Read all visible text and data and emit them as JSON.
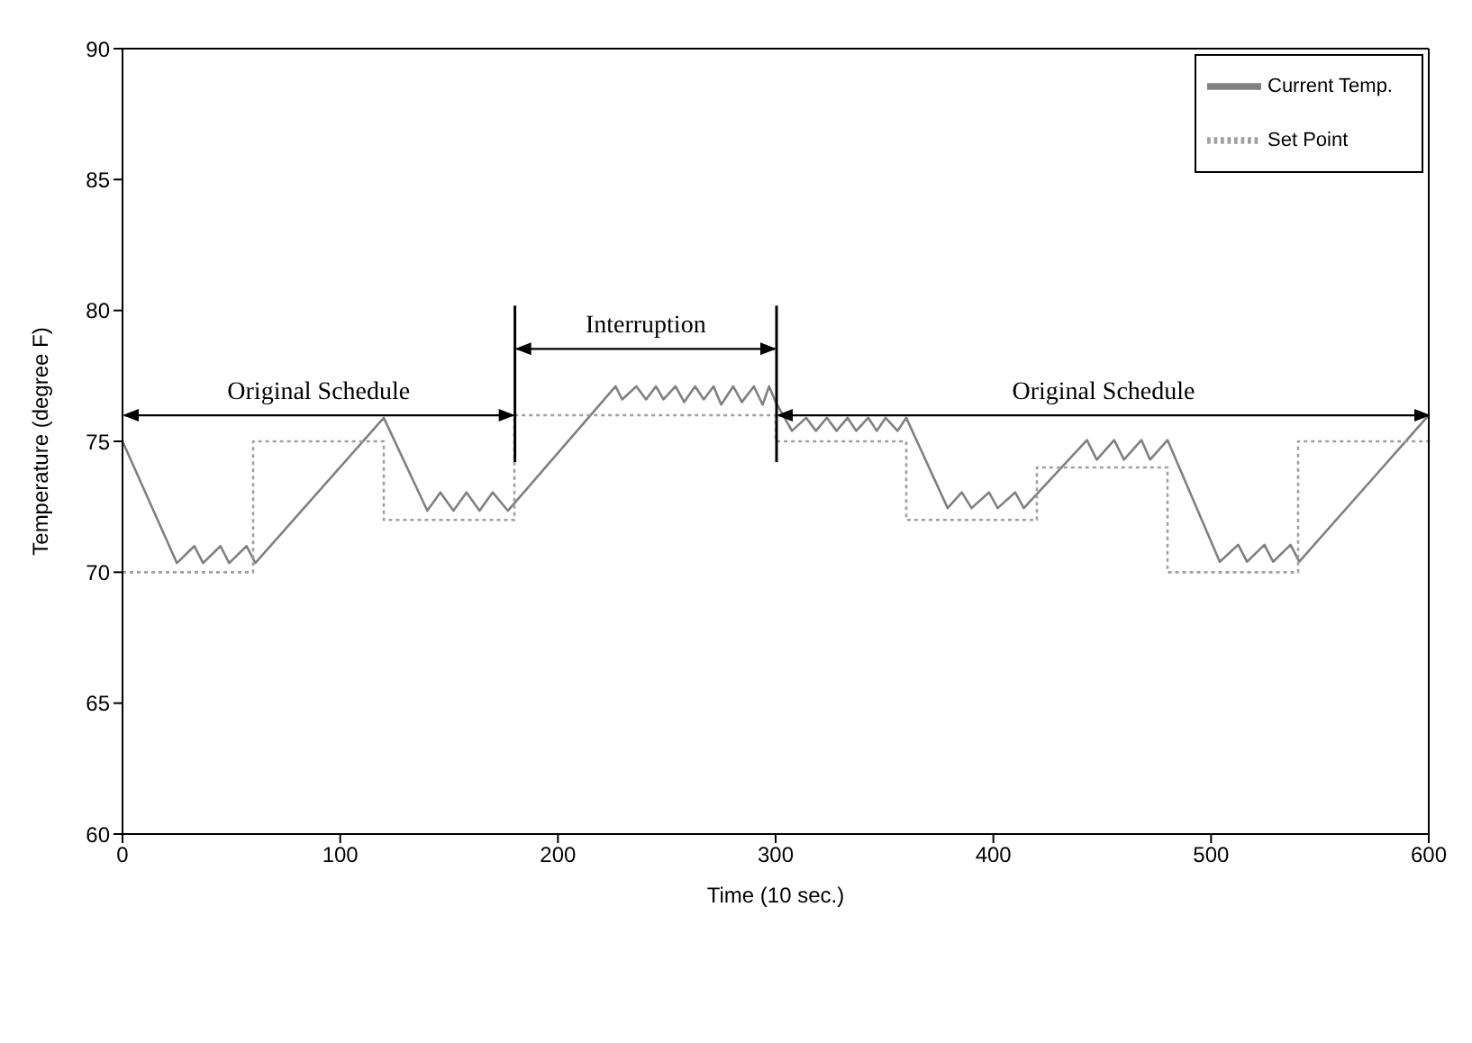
{
  "chart_data": {
    "type": "line",
    "xlabel": "Time (10 sec.)",
    "ylabel": "Temperature (degree F)",
    "xlim": [
      0,
      600
    ],
    "xticks": [
      0,
      100,
      200,
      300,
      400,
      500,
      600
    ],
    "ylim": [
      60,
      90
    ],
    "yticks": [
      60,
      65,
      70,
      75,
      80,
      85,
      90
    ],
    "legend": "top right",
    "marker": "none",
    "series": [
      {
        "name": "Current Temp.",
        "color": "#808080",
        "line_style": "solid",
        "x": [
          0,
          25,
          33,
          37,
          45,
          49,
          57,
          61,
          120,
          140,
          146,
          152,
          158,
          164,
          170,
          177,
          226.5,
          229.5,
          236,
          240.5,
          245,
          248.5,
          254,
          258,
          263,
          267,
          271.5,
          275,
          280.5,
          284.5,
          290,
          294,
          297,
          300,
          307.5,
          314,
          318.5,
          323.5,
          328,
          333,
          337,
          342.5,
          346.5,
          350.5,
          356,
          360,
          379,
          385.5,
          390,
          398,
          402,
          410,
          414,
          443,
          447.5,
          455.5,
          460,
          468,
          472,
          480,
          504,
          512.5,
          516.5,
          524.5,
          528.5,
          536.5,
          540.5,
          600
        ],
        "values": [
          75,
          70.35,
          71,
          70.35,
          71,
          70.35,
          71,
          70.35,
          75.9,
          72.35,
          73.05,
          72.35,
          73.05,
          72.35,
          73.05,
          72.35,
          77.1,
          76.6,
          77.1,
          76.6,
          77.1,
          76.6,
          77.1,
          76.5,
          77.1,
          76.6,
          77.1,
          76.4,
          77.1,
          76.5,
          77.1,
          76.4,
          77.1,
          76.5,
          75.4,
          75.9,
          75.4,
          75.9,
          75.4,
          75.9,
          75.4,
          75.9,
          75.4,
          75.9,
          75.4,
          75.9,
          72.45,
          73.05,
          72.45,
          73.05,
          72.45,
          73.05,
          72.45,
          75.05,
          74.3,
          75.05,
          74.3,
          75.05,
          74.3,
          75.05,
          70.4,
          71.05,
          70.4,
          71.05,
          70.4,
          71.05,
          70.4,
          76
        ]
      },
      {
        "name": "Set Point",
        "type": "step",
        "color": "#a0a0a0",
        "line_style": "dotted",
        "x": [
          0,
          60,
          120,
          180,
          300,
          360,
          420,
          480,
          540,
          600
        ],
        "values": [
          70,
          75,
          72,
          76,
          75,
          72,
          74,
          70,
          75,
          75
        ]
      }
    ],
    "ref_lines": [
      {
        "axis": "x",
        "value": 180,
        "label": null,
        "color": "#000000"
      },
      {
        "axis": "x",
        "value": 300,
        "label": null,
        "color": "#000000"
      }
    ],
    "annotations": [
      "Original Schedule",
      "Interruption",
      "Original Schedule"
    ]
  }
}
